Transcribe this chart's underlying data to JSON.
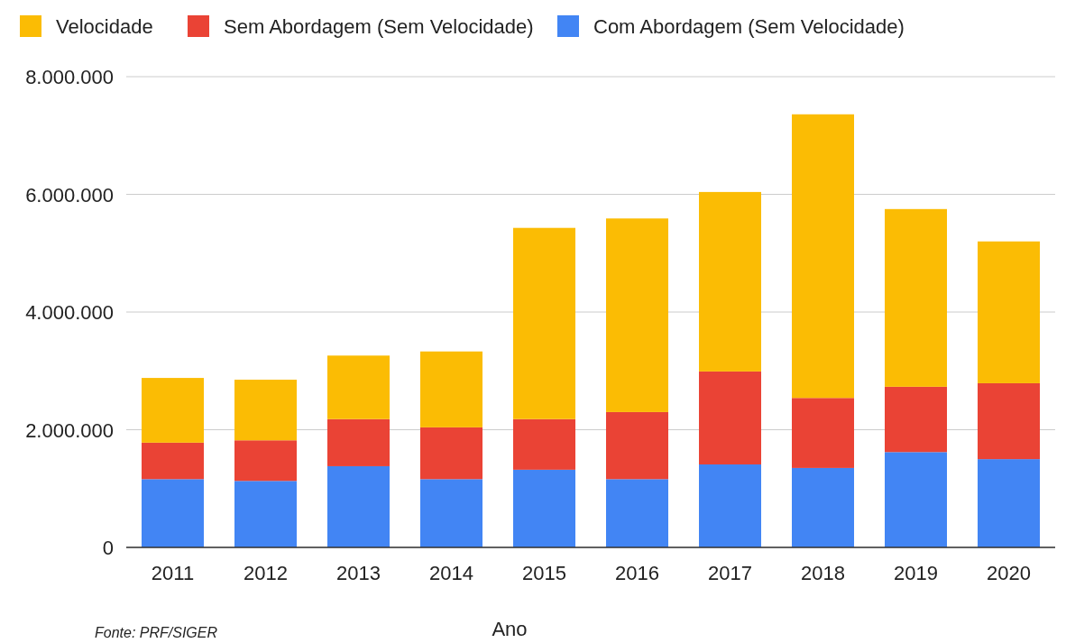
{
  "chart_data": {
    "type": "bar",
    "stacked": true,
    "xlabel": "Ano",
    "annotations": [
      "Fonte: PRF/SIGER"
    ],
    "categories": [
      "2011",
      "2012",
      "2013",
      "2014",
      "2015",
      "2016",
      "2017",
      "2018",
      "2019",
      "2020"
    ],
    "series": [
      {
        "name": "Com Abordagem (Sem Velocidade)",
        "color": "#4285f4",
        "values": [
          1160000,
          1130000,
          1380000,
          1160000,
          1320000,
          1160000,
          1410000,
          1350000,
          1620000,
          1500000
        ]
      },
      {
        "name": "Sem Abordagem (Sem Velocidade)",
        "color": "#ea4335",
        "values": [
          620000,
          690000,
          800000,
          880000,
          860000,
          1140000,
          1580000,
          1190000,
          1110000,
          1290000
        ]
      },
      {
        "name": "Velocidade",
        "color": "#fbbc04",
        "values": [
          1100000,
          1030000,
          1080000,
          1290000,
          3250000,
          3290000,
          3050000,
          4820000,
          3020000,
          2410000
        ]
      }
    ],
    "ylim": [
      0,
      8000000
    ],
    "yticks": [
      {
        "value": 0,
        "label": "0"
      },
      {
        "value": 2000000,
        "label": "2.000.000"
      },
      {
        "value": 4000000,
        "label": "4.000.000"
      },
      {
        "value": 6000000,
        "label": "6.000.000"
      },
      {
        "value": 8000000,
        "label": "8.000.000"
      }
    ],
    "grid": "y",
    "legend": "top"
  }
}
